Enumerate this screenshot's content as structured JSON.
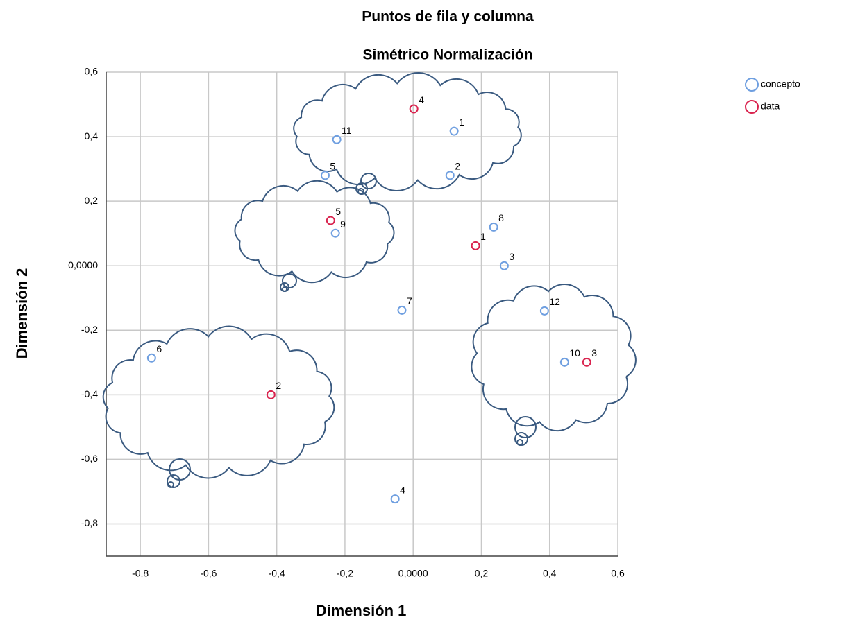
{
  "chart_data": {
    "type": "scatter",
    "title": "Puntos de fila y columna",
    "subtitle": "Simétrico Normalización",
    "x_label": "Dimensión 1",
    "y_label": "Dimensión 2",
    "xlim": [
      -0.9,
      0.6
    ],
    "ylim": [
      -0.9,
      0.6
    ],
    "xticks": [
      {
        "value": -0.8,
        "label": "-0,8"
      },
      {
        "value": -0.6,
        "label": "-0,6"
      },
      {
        "value": -0.4,
        "label": "-0,4"
      },
      {
        "value": -0.2,
        "label": "-0,2"
      },
      {
        "value": 0,
        "label": "0,0000"
      },
      {
        "value": 0.2,
        "label": "0,2"
      },
      {
        "value": 0.4,
        "label": "0,4"
      },
      {
        "value": 0.6,
        "label": "0,6"
      }
    ],
    "yticks": [
      {
        "value": -0.8,
        "label": "-0,8"
      },
      {
        "value": -0.6,
        "label": "-0,6"
      },
      {
        "value": -0.4,
        "label": "-0,4"
      },
      {
        "value": -0.2,
        "label": "-0,2"
      },
      {
        "value": 0,
        "label": "0,0000"
      },
      {
        "value": 0.2,
        "label": "0,2"
      },
      {
        "value": 0.4,
        "label": "0,4"
      },
      {
        "value": 0.6,
        "label": "0,6"
      }
    ],
    "grid": true,
    "legend": "top-right",
    "series": [
      {
        "name": "concepto",
        "color": "#6f9fe0",
        "labels": [
          "11",
          "1",
          "5",
          "2",
          "9",
          "8",
          "3",
          "7",
          "12",
          "10",
          "6",
          "4"
        ],
        "x": [
          -0.224,
          0.12,
          -0.258,
          0.108,
          -0.228,
          0.236,
          0.267,
          -0.033,
          0.385,
          0.444,
          -0.767,
          -0.053
        ],
        "y": [
          0.391,
          0.417,
          0.28,
          0.28,
          0.101,
          0.12,
          0.0,
          -0.138,
          -0.14,
          -0.299,
          -0.286,
          -0.723
        ]
      },
      {
        "name": "data",
        "color": "#d9234e",
        "labels": [
          "4",
          "5",
          "1",
          "3",
          "2"
        ],
        "x": [
          0.002,
          -0.242,
          0.183,
          0.509,
          -0.417
        ],
        "y": [
          0.486,
          0.14,
          0.062,
          -0.299,
          -0.4
        ]
      }
    ]
  }
}
